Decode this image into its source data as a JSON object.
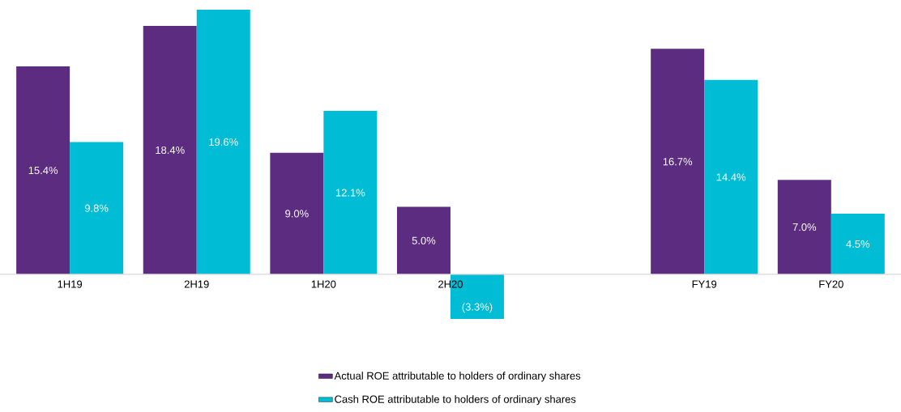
{
  "chart_data": {
    "type": "bar",
    "categories": [
      "1H19",
      "2H19",
      "1H20",
      "2H20",
      null,
      "FY19",
      "FY20"
    ],
    "series": [
      {
        "name": "Actual ROE attributable to holders of ordinary shares",
        "color": "#5b2c7f",
        "values": [
          15.4,
          18.4,
          9.0,
          5.0,
          null,
          16.7,
          7.0
        ],
        "value_labels": [
          "15.4%",
          "18.4%",
          "9.0%",
          "5.0%",
          null,
          "16.7%",
          "7.0%"
        ]
      },
      {
        "name": "Cash ROE attributable to holders of ordinary shares",
        "color": "#00bcd4",
        "values": [
          9.8,
          19.6,
          12.1,
          -3.3,
          null,
          14.4,
          4.5
        ],
        "value_labels": [
          "9.8%",
          "19.6%",
          "12.1%",
          "(3.3%)",
          null,
          "14.4%",
          "4.5%"
        ]
      }
    ],
    "legend": "bottom"
  }
}
